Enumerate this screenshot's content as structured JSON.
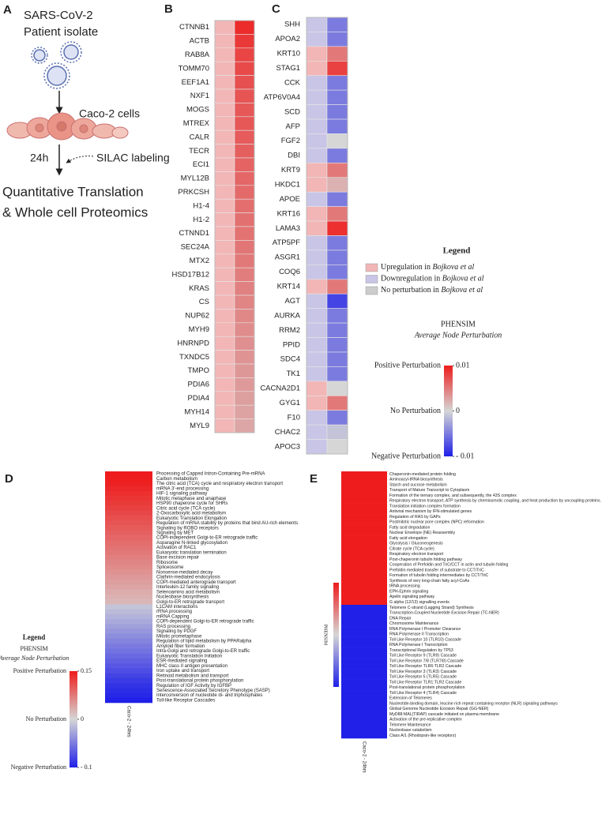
{
  "panel_a": {
    "letter": "A",
    "virus": "SARS-CoV-2",
    "isolate": "Patient isolate",
    "cells": "Caco-2 cells",
    "time": "24h",
    "labeling": "SILAC labeling",
    "result": [
      "Quantitative Translation",
      "& Whole cell Proteomics"
    ]
  },
  "chart_data": [
    {
      "type": "heatmap",
      "letter": "B",
      "categories": [
        "CTNNB1",
        "ACTB",
        "RAB8A",
        "TOMM70",
        "EEF1A1",
        "NXF1",
        "MOGS",
        "MTREX",
        "CALR",
        "TECR",
        "ECI1",
        "MYL12B",
        "PRKCSH",
        "H1-4",
        "H1-2",
        "CTNND1",
        "SEC24A",
        "MTX2",
        "HSD17B12",
        "KRAS",
        "CS",
        "NUP62",
        "MYH9",
        "HNRNPD",
        "TXNDC5",
        "TMPO",
        "PDIA6",
        "PDIA4",
        "MYH14",
        "MYL9"
      ],
      "regulation_colors": [
        "#f2b6b6",
        "#f2b6b6",
        "#f2b6b6",
        "#f2b6b6",
        "#f2b6b6",
        "#f2b6b6",
        "#f2b6b6",
        "#f2b6b6",
        "#f2b6b6",
        "#f2b6b6",
        "#f2b6b6",
        "#f2b6b6",
        "#f2b6b6",
        "#f2b6b6",
        "#f2b6b6",
        "#f2b6b6",
        "#f2b6b6",
        "#f2b6b6",
        "#f2b6b6",
        "#f2b6b6",
        "#f2b6b6",
        "#f2b6b6",
        "#f2b6b6",
        "#f2b6b6",
        "#f2b6b6",
        "#f2b6b6",
        "#f2b6b6",
        "#f2b6b6",
        "#f2b6b6",
        "#f2b6b6"
      ],
      "values": [
        0.0092,
        0.0085,
        0.0078,
        0.0076,
        0.0072,
        0.007,
        0.0068,
        0.0068,
        0.0066,
        0.0064,
        0.0062,
        0.006,
        0.0058,
        0.0056,
        0.0055,
        0.0054,
        0.0052,
        0.005,
        0.0048,
        0.0046,
        0.0044,
        0.0042,
        0.004,
        0.0038,
        0.0036,
        0.0034,
        0.0032,
        0.003,
        0.0028,
        0.0026
      ],
      "zlim": [
        -0.01,
        0.01
      ],
      "colors": {
        "negative": "#2020e8",
        "zero": "#d6d6d6",
        "positive": "#ee1c1c"
      }
    },
    {
      "type": "heatmap",
      "letter": "C",
      "categories": [
        "SHH",
        "APOA2",
        "KRT10",
        "STAG1",
        "CCK",
        "ATP6V0A4",
        "SCD",
        "AFP",
        "FGF2",
        "DBI",
        "KRT9",
        "HKDC1",
        "APOE",
        "KRT16",
        "LAMA3",
        "ATP5PF",
        "ASGR1",
        "COQ6",
        "KRT14",
        "AGT",
        "AURKA",
        "RRM2",
        "PPID",
        "SDC4",
        "TK1",
        "CACNA2D1",
        "GYG1",
        "F10",
        "CHAC2",
        "APOC3"
      ],
      "regulation_colors": [
        "#c9c5e6",
        "#c9c5e6",
        "#f2b6b6",
        "#f2b6b6",
        "#c9c5e6",
        "#c9c5e6",
        "#c9c5e6",
        "#c9c5e6",
        "#c9c5e6",
        "#c9c5e6",
        "#f2b6b6",
        "#f2b6b6",
        "#c9c5e6",
        "#f2b6b6",
        "#f2b6b6",
        "#c9c5e6",
        "#c9c5e6",
        "#c9c5e6",
        "#f2b6b6",
        "#c9c5e6",
        "#c9c5e6",
        "#c9c5e6",
        "#c9c5e6",
        "#c9c5e6",
        "#c9c5e6",
        "#f2b6b6",
        "#f2b6b6",
        "#c9c5e6",
        "#c9c5e6",
        "#c9c5e6"
      ],
      "values": [
        -0.005,
        -0.005,
        0.005,
        0.008,
        -0.005,
        -0.005,
        -0.005,
        -0.005,
        0,
        -0.005,
        0.005,
        0.002,
        -0.005,
        0.005,
        0.009,
        -0.005,
        -0.005,
        -0.005,
        0.005,
        -0.008,
        -0.005,
        -0.005,
        -0.005,
        -0.005,
        -0.005,
        0,
        0.005,
        -0.005,
        -0.001,
        0
      ],
      "zlim": [
        -0.01,
        0.01
      ],
      "colors": {
        "negative": "#2020e8",
        "zero": "#d6d6d6",
        "positive": "#ee1c1c"
      },
      "legend": {
        "title": "Legend",
        "items": [
          {
            "color": "#f2b6b6",
            "text": "Upregulation in ",
            "ref": "Bojkova et al"
          },
          {
            "color": "#c9c5e6",
            "text": "Downregulation in ",
            "ref": "Bojkova et al"
          },
          {
            "color": "#cccccc",
            "text": "No perturbation in ",
            "ref": "Bojkova et al"
          }
        ],
        "scale_title": "PHENSIM",
        "scale_subtitle": "Average Node Perturbation",
        "scale_labels": [
          "Positive Perturbation",
          "No Perturbation",
          "Negative Perturbation"
        ],
        "ticks": [
          0.01,
          0,
          {
            "value": -0.01,
            "label": "- 0.01"
          }
        ]
      }
    },
    {
      "type": "heatmap",
      "letter": "D",
      "categories": [
        "Processing of Capped Intron-Containing Pre-mRNA",
        "Carbon metabolism",
        "The citric acid (TCA) cycle and respiratory electron transport",
        "mRNA 3'-end processing",
        "HIF-1 signaling pathway",
        "Mitotic metaphase and anaphase",
        "HSP90 chaperone cycle for SHRs",
        "Citric acid cycle (TCA cycle)",
        "2-Oxocarboxylic acid metabolism",
        "Eukaryotic Translation Elongation",
        "Regulation of mRNA stability by proteins that bind AU-rich elements",
        "Signaling by ROBO receptors",
        "Signaling by MET",
        "COPI-independent Golgi-to-ER retrograde traffic",
        "Asparagine N-linked glycosylation",
        "Activation of RAC1",
        "Eukaryotic translation termination",
        "Base excision repair",
        "Ribosome",
        "Spliceosome",
        "Nonsense-mediated decay",
        "Clathrin-mediated endocytosis",
        "COPI-mediated anterograde transport",
        "Interleukin-12 family signaling",
        "Selenoamino acid metabolism",
        "Nucleobase biosynthesis",
        "Golgi-to-ER retrograde transport",
        "L1CAM interactions",
        "rRNA processing",
        "mRNA Capping",
        "COPI-dependent Golgi-to-ER retrograde traffic",
        "RAS processing",
        "Signaling by PDGF",
        "Mitotic prometaphase",
        "Regulation of lipid metabolism by PPARalpha",
        "Amyloid fiber formation",
        "Intra-Golgi and retrograde Golgi-to-ER traffic",
        "Eukaryotic Translation Initiation",
        "ESR-mediated signaling",
        "MHC class II antigen presentation",
        "Iron uptake and transport",
        "Retinoid metabolism and transport",
        "Post-translational protein phosphorylation",
        "Regulation of IGF Activity by IGFBP",
        "Senescence-Associated Secretory Phenotype (SASP)",
        "Interconversion of nucleotide di- and triphosphates",
        "Toll-like Receptor Cascades"
      ],
      "values": [
        0.15,
        0.148,
        0.146,
        0.14,
        0.135,
        0.13,
        0.125,
        0.12,
        0.115,
        0.11,
        0.105,
        0.1,
        0.095,
        0.09,
        0.085,
        0.08,
        0.075,
        0.07,
        0.065,
        0.06,
        0.055,
        0.05,
        0.045,
        0.04,
        0.035,
        0.03,
        0.025,
        -0.01,
        -0.015,
        -0.02,
        -0.025,
        -0.03,
        -0.035,
        -0.04,
        -0.045,
        -0.05,
        -0.055,
        -0.06,
        -0.065,
        -0.07,
        -0.075,
        -0.08,
        -0.085,
        -0.09,
        -0.093,
        -0.096,
        -0.1
      ],
      "zlim": [
        -0.1,
        0.15
      ],
      "colors": {
        "negative": "#2020e8",
        "zero": "#d6d6d6",
        "positive": "#ee1c1c"
      },
      "column_label": "Caco-2 - 24hrs",
      "legend": {
        "title": "Legend",
        "scale_title": "PHENSIM",
        "scale_subtitle": "Average Node Perturbation",
        "scale_labels": [
          "Positive Perturbation",
          "No Perturbation",
          "Negative Perturbation"
        ],
        "ticks": [
          0.15,
          0,
          {
            "value": -0.1,
            "label": "- 0.1"
          }
        ]
      }
    },
    {
      "type": "heatmap",
      "letter": "E",
      "categories": [
        "Chaperonin-mediated protein folding",
        "Aminoacyl-tRNA biosynthesis",
        "Starch and sucrose metabolism",
        "Transport of Mature Transcript to Cytoplasm",
        "Formation of the ternary complex, and subsequently, the 43S complex",
        "Respiratory electron transport, ATP synthesis by chemiosmotic coupling, and heat production by uncoupling proteins.",
        "Translation initiation complex formation",
        "Antiviral mechanism by IFN-stimulated genes",
        "Regulation of RAS by GAPs",
        "Postmitotic nuclear pore complex (NPC) reformation",
        "Fatty acid degradation",
        "Nuclear Envelope (NE) Reassembly",
        "Fatty acid elongation",
        "Glycolysis / Gluconeogenesis",
        "Citrate cycle (TCA cycle)",
        "Respiratory electron transport",
        "Post-chaperonin tubulin folding pathway",
        "Cooperation of Prefoldin and TriC/CCT  in actin and tubulin folding",
        "Prefoldin mediated transfer of substrate  to CCT/TriC",
        "Formation of tubulin folding intermediates by CCT/TriC",
        "Synthesis of very long-chain fatty acyl-CoAs",
        "tRNA processing",
        "EPH-Ephrin signaling",
        "Apelin signaling pathway",
        "G alpha (12/13) signalling events",
        "Telomere C-strand (Lagging Strand) Synthesis",
        "Transcription-Coupled Nucleotide Excision Repair (TC-NER)",
        "DNA Repair",
        "Chromosome Maintenance",
        "RNA Polymerase I Promoter Clearance",
        "RNA Polymerase II Transcription",
        "Toll Like Receptor 10 (TLR10) Cascade",
        "RNA Polymerase I Transcription",
        "Transcriptional Regulation by TP53",
        "Toll Like Receptor 9 (TLR9) Cascade",
        "Toll Like Receptor 7/8 (TLR7/8) Cascade",
        "Toll Like Receptor TLR6:TLR2 Cascade",
        "Toll Like Receptor 3 (TLR3) Cascade",
        "Toll Like Receptor 5 (TLR5) Cascade",
        "Toll Like Receptor TLR1:TLR2 Cascade",
        "Post-translational protein phosphorylation",
        "Toll Like Receptor 4 (TLR4) Cascade",
        "Extension of Telomeres",
        "Nucleotide-binding domain, leucine rich repeat containing receptor (NLR) signaling pathways",
        "Global Genome Nucleotide Excision Repair (GG-NER)",
        "MyD88:MAL(TIRAP) cascade initiated on plasma membrane",
        "Activation of the pre-replicative complex",
        "Telomere Maintenance",
        "Nucleobase catabolism",
        "Class A/1 (Rhodopsin-like receptors)"
      ],
      "values": [
        1,
        1,
        1,
        1,
        1,
        1,
        1,
        1,
        1,
        1,
        1,
        1,
        1,
        1,
        1,
        1,
        1,
        1,
        1,
        1,
        1,
        1,
        1,
        1,
        1,
        -1,
        -1,
        -1,
        -1,
        -1,
        -1,
        -1,
        -1,
        -1,
        -1,
        -1,
        -1,
        -1,
        -1,
        -1,
        -1,
        -1,
        -1,
        -1,
        -1,
        -1,
        -1,
        -1,
        -1,
        -1
      ],
      "zlim": [
        -1,
        1
      ],
      "colors": {
        "negative": "#2020e8",
        "zero": "#d6d6d6",
        "positive": "#ee1c1c"
      },
      "column_label": "Caco-2 - 24hrs",
      "legend": {
        "scale_title": "PHENSIM"
      }
    }
  ]
}
